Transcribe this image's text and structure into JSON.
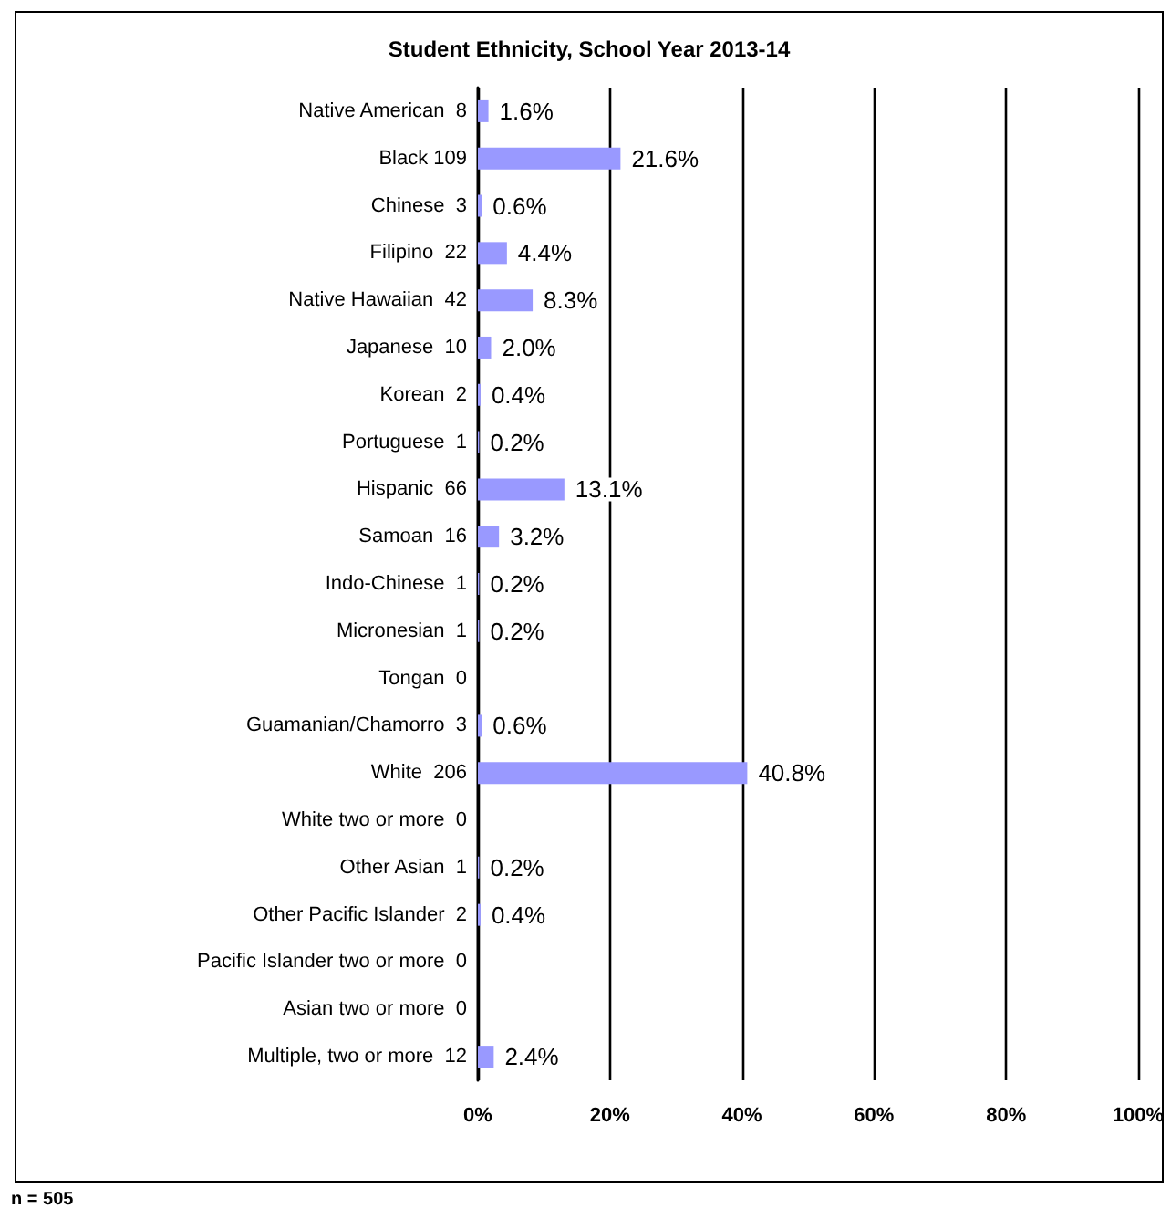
{
  "chart_data": {
    "type": "bar",
    "orientation": "horizontal",
    "title": "Student Ethnicity, School Year 2013-14",
    "categories": [
      "Native American  8",
      "Black 109",
      "Chinese  3",
      "Filipino  22",
      "Native Hawaiian  42",
      "Japanese  10",
      "Korean  2",
      "Portuguese  1",
      "Hispanic  66",
      "Samoan  16",
      "Indo-Chinese  1",
      "Micronesian  1",
      "Tongan  0",
      "Guamanian/Chamorro  3",
      "White  206",
      "White two or more  0",
      "Other Asian  1",
      "Other Pacific Islander  2",
      "Pacific Islander two or more  0",
      "Asian two or more  0",
      "Multiple, two or more  12"
    ],
    "values": [
      1.6,
      21.6,
      0.6,
      4.4,
      8.3,
      2.0,
      0.4,
      0.2,
      13.1,
      3.2,
      0.2,
      0.2,
      0,
      0.6,
      40.8,
      0,
      0.2,
      0.4,
      0,
      0,
      2.4
    ],
    "value_labels": [
      "1.6%",
      "21.6%",
      "0.6%",
      "4.4%",
      "8.3%",
      "2.0%",
      "0.4%",
      "0.2%",
      "13.1%",
      "3.2%",
      "0.2%",
      "0.2%",
      null,
      "0.6%",
      "40.8%",
      null,
      "0.2%",
      "0.4%",
      null,
      null,
      "2.4%"
    ],
    "color": "#9999ff",
    "xlim": [
      0,
      100
    ],
    "xticks": [
      {
        "value": 0,
        "label": "0%"
      },
      {
        "value": 20,
        "label": "20%"
      },
      {
        "value": 40,
        "label": "40%"
      },
      {
        "value": 60,
        "label": "60%"
      },
      {
        "value": 80,
        "label": "80%"
      },
      {
        "value": 100,
        "label": "100%"
      }
    ],
    "grid": "x",
    "annotations": [
      "n = 505"
    ]
  }
}
